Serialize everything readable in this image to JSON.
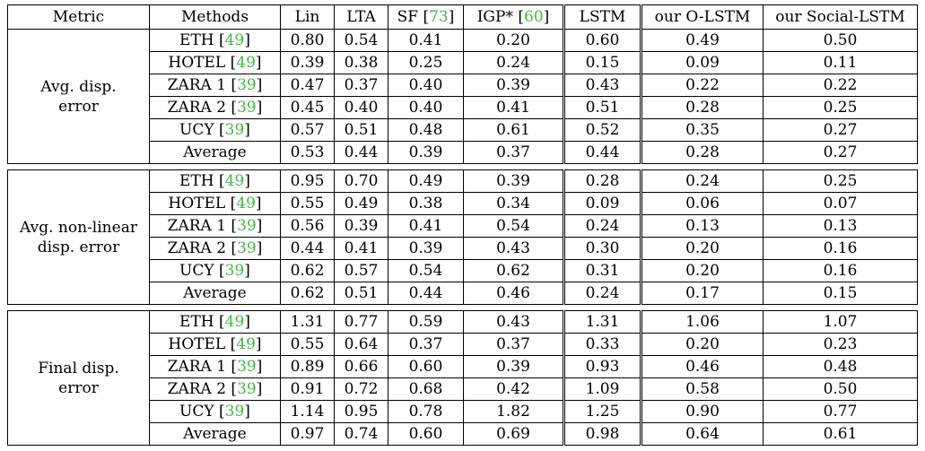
{
  "table": {
    "headers": [
      "Metric",
      "Methods",
      "Lin",
      "LTA",
      "SF [73]",
      "IGP* [60]",
      "LSTM",
      "our O-LSTM",
      "our Social-LSTM"
    ],
    "header_parts": {
      "sf": {
        "text": "SF [",
        "cite": "73",
        "close": "]"
      },
      "igp": {
        "text": "IGP* [",
        "cite": "60",
        "close": "]"
      }
    },
    "groups": [
      {
        "metric_line1": "Avg. disp.",
        "metric_line2": "error",
        "rows": [
          {
            "method": "ETH",
            "cite": "49",
            "values": [
              "0.80",
              "0.54",
              "0.41",
              "0.20",
              "0.60",
              "0.49",
              "0.50"
            ],
            "bold": [
              3
            ]
          },
          {
            "method": "HOTEL",
            "cite": "49",
            "values": [
              "0.39",
              "0.38",
              "0.25",
              "0.24",
              "0.15",
              "0.09",
              "0.11"
            ],
            "bold": [
              5
            ]
          },
          {
            "method": "ZARA 1",
            "cite": "39",
            "values": [
              "0.47",
              "0.37",
              "0.40",
              "0.39",
              "0.43",
              "0.22",
              "0.22"
            ],
            "bold": [
              5,
              6
            ]
          },
          {
            "method": "ZARA 2",
            "cite": "39",
            "values": [
              "0.45",
              "0.40",
              "0.40",
              "0.41",
              "0.51",
              "0.28",
              "0.25"
            ],
            "bold": [
              6
            ]
          },
          {
            "method": "UCY",
            "cite": "39",
            "values": [
              "0.57",
              "0.51",
              "0.48",
              "0.61",
              "0.52",
              "0.35",
              "0.27"
            ],
            "bold": [
              6
            ]
          },
          {
            "method": "Average",
            "cite": "",
            "values": [
              "0.53",
              "0.44",
              "0.39",
              "0.37",
              "0.44",
              "0.28",
              "0.27"
            ],
            "bold": [
              6
            ]
          }
        ]
      },
      {
        "metric_line1": "Avg. non-linear",
        "metric_line2": "disp. error",
        "rows": [
          {
            "method": "ETH",
            "cite": "49",
            "values": [
              "0.95",
              "0.70",
              "0.49",
              "0.39",
              "0.28",
              "0.24",
              "0.25"
            ],
            "bold": [
              5
            ]
          },
          {
            "method": "HOTEL",
            "cite": "49",
            "values": [
              "0.55",
              "0.49",
              "0.38",
              "0.34",
              "0.09",
              "0.06",
              "0.07"
            ],
            "bold": [
              5
            ]
          },
          {
            "method": "ZARA 1",
            "cite": "39",
            "values": [
              "0.56",
              "0.39",
              "0.41",
              "0.54",
              "0.24",
              "0.13",
              "0.13"
            ],
            "bold": [
              5,
              6
            ]
          },
          {
            "method": "ZARA 2",
            "cite": "39",
            "values": [
              "0.44",
              "0.41",
              "0.39",
              "0.43",
              "0.30",
              "0.20",
              "0.16"
            ],
            "bold": [
              6
            ]
          },
          {
            "method": "UCY",
            "cite": "39",
            "values": [
              "0.62",
              "0.57",
              "0.54",
              "0.62",
              "0.31",
              "0.20",
              "0.16"
            ],
            "bold": [
              6
            ]
          },
          {
            "method": "Average",
            "cite": "",
            "values": [
              "0.62",
              "0.51",
              "0.44",
              "0.46",
              "0.24",
              "0.17",
              "0.15"
            ],
            "bold": [
              6
            ]
          }
        ]
      },
      {
        "metric_line1": "Final disp.",
        "metric_line2": "error",
        "rows": [
          {
            "method": "ETH",
            "cite": "49",
            "values": [
              "1.31",
              "0.77",
              "0.59",
              "0.43",
              "1.31",
              "1.06",
              "1.07"
            ],
            "bold": [
              3
            ]
          },
          {
            "method": "HOTEL",
            "cite": "49",
            "values": [
              "0.55",
              "0.64",
              "0.37",
              "0.37",
              "0.33",
              "0.20",
              "0.23"
            ],
            "bold": [
              5
            ]
          },
          {
            "method": "ZARA 1",
            "cite": "39",
            "values": [
              "0.89",
              "0.66",
              "0.60",
              "0.39",
              "0.93",
              "0.46",
              "0.48"
            ],
            "bold": [
              5
            ]
          },
          {
            "method": "ZARA 2",
            "cite": "39",
            "values": [
              "0.91",
              "0.72",
              "0.68",
              "0.42",
              "1.09",
              "0.58",
              "0.50"
            ],
            "bold": [
              6
            ]
          },
          {
            "method": "UCY",
            "cite": "39",
            "values": [
              "1.14",
              "0.95",
              "0.78",
              "1.82",
              "1.25",
              "0.90",
              "0.77"
            ],
            "bold": [
              6
            ]
          },
          {
            "method": "Average",
            "cite": "",
            "values": [
              "0.97",
              "0.74",
              "0.60",
              "0.69",
              "0.98",
              "0.64",
              "0.61"
            ],
            "bold": [
              2
            ]
          }
        ]
      }
    ],
    "colors": {
      "citation": "#3bbf3b",
      "text": "#000000",
      "background": "#ffffff"
    }
  }
}
